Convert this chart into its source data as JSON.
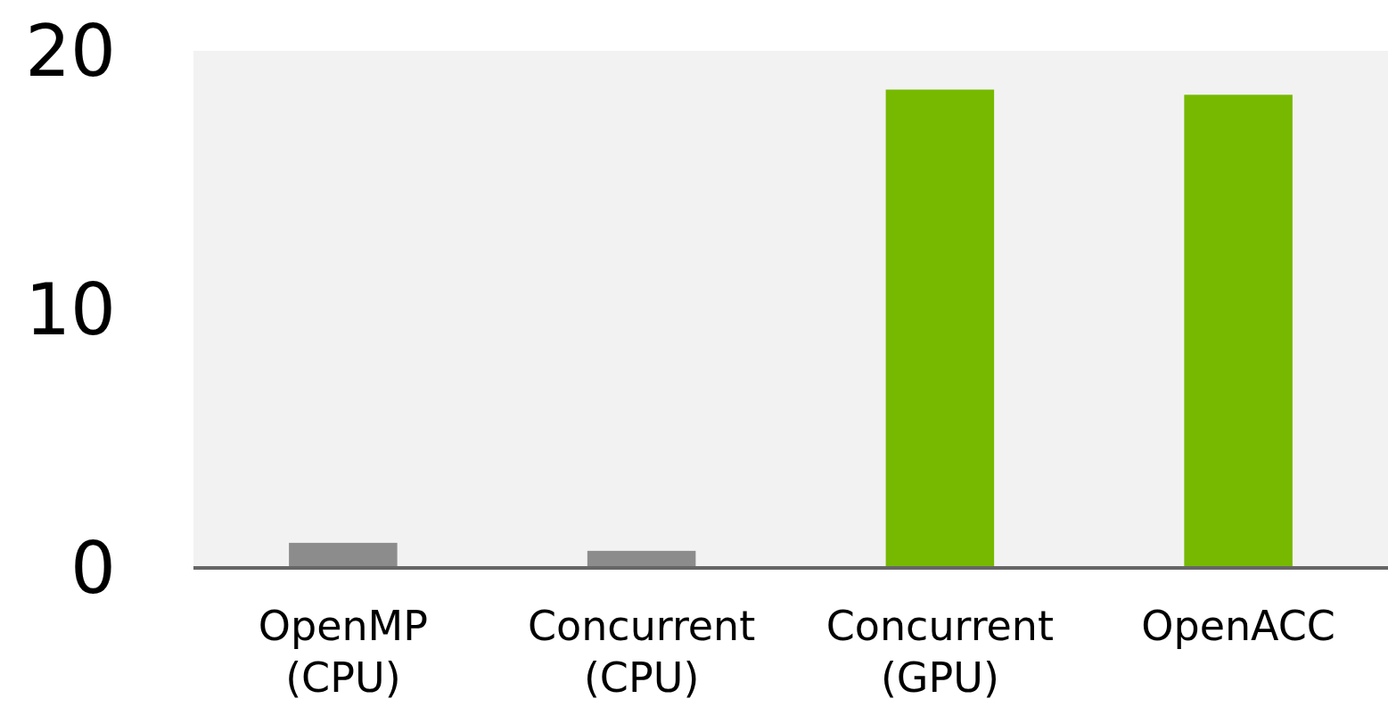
{
  "chart_data": {
    "type": "bar",
    "categories": [
      "OpenMP\n(CPU)",
      "Concurrent\n(CPU)",
      "Concurrent\n(GPU)",
      "OpenACC"
    ],
    "values": [
      0.97,
      0.66,
      18.5,
      18.3
    ],
    "colors": [
      "#8c8c8c",
      "#8c8c8c",
      "#76b900",
      "#76b900"
    ],
    "ylim": [
      0,
      20
    ],
    "yticks": [
      0,
      10,
      20
    ],
    "grid": false
  }
}
